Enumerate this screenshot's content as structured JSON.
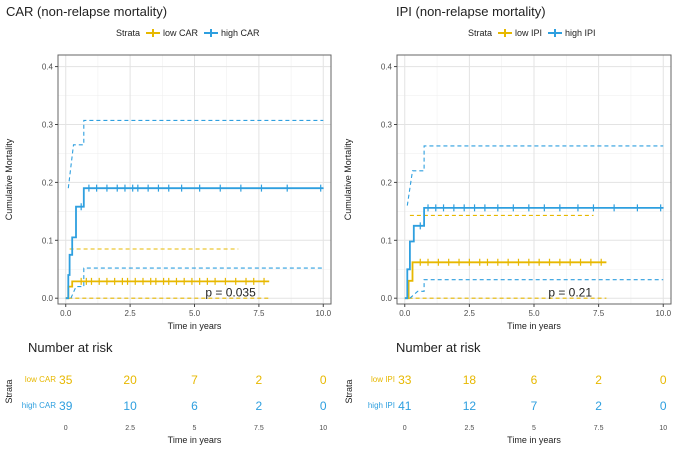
{
  "colors": {
    "low": "#E7B800",
    "high": "#2E9FDF",
    "grid": "#e3e3e3",
    "panel_border": "#666666"
  },
  "panels": [
    {
      "title": "CAR (non-relapse mortality)",
      "legend": {
        "title": "Strata",
        "low_label": "low CAR",
        "high_label": "high CAR"
      },
      "p_value_text": "p = 0.035",
      "risk_table": {
        "title": "Number at risk",
        "ylabel": "Strata",
        "xlabel": "Time in years",
        "rows": [
          {
            "label": "low CAR",
            "counts": [
              "35",
              "20",
              "7",
              "2",
              "0"
            ]
          },
          {
            "label": "high CAR",
            "counts": [
              "39",
              "10",
              "6",
              "2",
              "0"
            ]
          }
        ]
      }
    },
    {
      "title": "IPI (non-relapse mortality)",
      "legend": {
        "title": "Strata",
        "low_label": "low IPI",
        "high_label": "high IPI"
      },
      "p_value_text": "p = 0.21",
      "risk_table": {
        "title": "Number at risk",
        "ylabel": "Strata",
        "xlabel": "Time in years",
        "rows": [
          {
            "label": "low IPI",
            "counts": [
              "33",
              "18",
              "6",
              "2",
              "0"
            ]
          },
          {
            "label": "high IPI",
            "counts": [
              "41",
              "12",
              "7",
              "2",
              "0"
            ]
          }
        ]
      }
    }
  ],
  "chart_data": [
    {
      "type": "line",
      "title": "CAR (non-relapse mortality)",
      "xlabel": "Time in years",
      "ylabel": "Cumulative Mortality",
      "xlim": [
        -0.3,
        10.3
      ],
      "ylim": [
        -0.01,
        0.42
      ],
      "xticks": [
        "0.0",
        "2.5",
        "5.0",
        "7.5",
        "10.0"
      ],
      "yticks": [
        "0.0",
        "0.1",
        "0.2",
        "0.3",
        "0.4"
      ],
      "x_tick_values": [
        0,
        2.5,
        5,
        7.5,
        10
      ],
      "y_tick_values": [
        0,
        0.1,
        0.2,
        0.3,
        0.4
      ],
      "annotation": "p = 0.035",
      "series": [
        {
          "name": "low CAR",
          "color": "#E7B800",
          "step": [
            [
              0,
              0
            ],
            [
              0.1,
              0
            ],
            [
              0.1,
              0.02
            ],
            [
              0.25,
              0.02
            ],
            [
              0.25,
              0.029
            ],
            [
              7.9,
              0.029
            ]
          ],
          "ci_upper": [
            [
              0.15,
              0.085
            ],
            [
              6.7,
              0.085
            ]
          ],
          "ci_lower": [
            [
              0.1,
              0
            ],
            [
              7.9,
              0
            ]
          ],
          "censor_x": [
            0.6,
            0.8,
            1.0,
            1.3,
            1.6,
            1.9,
            2.2,
            2.4,
            2.7,
            3.0,
            3.3,
            3.5,
            3.8,
            4.0,
            4.3,
            4.6,
            4.9,
            5.2,
            5.5,
            5.8,
            6.2,
            6.6,
            7.0,
            7.3,
            7.7
          ]
        },
        {
          "name": "high CAR",
          "color": "#2E9FDF",
          "step": [
            [
              0,
              0
            ],
            [
              0.1,
              0
            ],
            [
              0.1,
              0.04
            ],
            [
              0.15,
              0.04
            ],
            [
              0.15,
              0.075
            ],
            [
              0.25,
              0.075
            ],
            [
              0.25,
              0.105
            ],
            [
              0.4,
              0.105
            ],
            [
              0.4,
              0.158
            ],
            [
              0.7,
              0.158
            ],
            [
              0.7,
              0.19
            ],
            [
              10,
              0.19
            ]
          ],
          "ci_upper": [
            [
              0.1,
              0.19
            ],
            [
              0.3,
              0.265
            ],
            [
              0.7,
              0.265
            ],
            [
              0.7,
              0.307
            ],
            [
              10,
              0.307
            ]
          ],
          "ci_lower": [
            [
              0.2,
              0
            ],
            [
              0.4,
              0.02
            ],
            [
              0.7,
              0.02
            ],
            [
              0.7,
              0.052
            ],
            [
              10,
              0.052
            ]
          ],
          "censor_x": [
            0.6,
            0.9,
            1.2,
            1.6,
            2.0,
            2.3,
            2.6,
            2.8,
            3.2,
            3.6,
            4.0,
            4.5,
            5.2,
            6.0,
            6.8,
            7.6,
            8.6,
            9.9
          ]
        }
      ]
    },
    {
      "type": "line",
      "title": "IPI (non-relapse mortality)",
      "xlabel": "Time in years",
      "ylabel": "Cumulative Mortality",
      "xlim": [
        -0.3,
        10.3
      ],
      "ylim": [
        -0.01,
        0.42
      ],
      "xticks": [
        "0.0",
        "2.5",
        "5.0",
        "7.5",
        "10.0"
      ],
      "yticks": [
        "0.0",
        "0.1",
        "0.2",
        "0.3",
        "0.4"
      ],
      "x_tick_values": [
        0,
        2.5,
        5,
        7.5,
        10
      ],
      "y_tick_values": [
        0,
        0.1,
        0.2,
        0.3,
        0.4
      ],
      "annotation": "p = 0.21",
      "series": [
        {
          "name": "low IPI",
          "color": "#E7B800",
          "step": [
            [
              0,
              0
            ],
            [
              0.15,
              0
            ],
            [
              0.15,
              0.03
            ],
            [
              0.3,
              0.03
            ],
            [
              0.3,
              0.062
            ],
            [
              7.8,
              0.062
            ]
          ],
          "ci_upper": [
            [
              0.2,
              0.143
            ],
            [
              7.3,
              0.143
            ]
          ],
          "ci_lower": [
            [
              0.15,
              0
            ],
            [
              7.8,
              0
            ]
          ],
          "censor_x": [
            0.6,
            0.9,
            1.3,
            1.7,
            2.1,
            2.5,
            2.9,
            3.2,
            3.6,
            4.0,
            4.4,
            4.8,
            5.2,
            5.6,
            6.0,
            6.4,
            6.8,
            7.2,
            7.6
          ]
        },
        {
          "name": "high IPI",
          "color": "#2E9FDF",
          "step": [
            [
              0,
              0
            ],
            [
              0.1,
              0
            ],
            [
              0.1,
              0.05
            ],
            [
              0.2,
              0.05
            ],
            [
              0.2,
              0.098
            ],
            [
              0.35,
              0.098
            ],
            [
              0.35,
              0.125
            ],
            [
              0.75,
              0.125
            ],
            [
              0.75,
              0.156
            ],
            [
              10,
              0.156
            ]
          ],
          "ci_upper": [
            [
              0.1,
              0.16
            ],
            [
              0.3,
              0.22
            ],
            [
              0.75,
              0.22
            ],
            [
              0.75,
              0.263
            ],
            [
              10,
              0.263
            ]
          ],
          "ci_lower": [
            [
              0.2,
              0
            ],
            [
              0.5,
              0.012
            ],
            [
              0.75,
              0.012
            ],
            [
              0.75,
              0.032
            ],
            [
              10,
              0.032
            ]
          ],
          "censor_x": [
            0.6,
            0.9,
            1.2,
            1.5,
            1.9,
            2.3,
            2.7,
            3.1,
            3.6,
            4.2,
            4.8,
            5.4,
            6.0,
            6.7,
            7.3,
            8.1,
            9.0,
            9.9
          ]
        }
      ]
    }
  ]
}
